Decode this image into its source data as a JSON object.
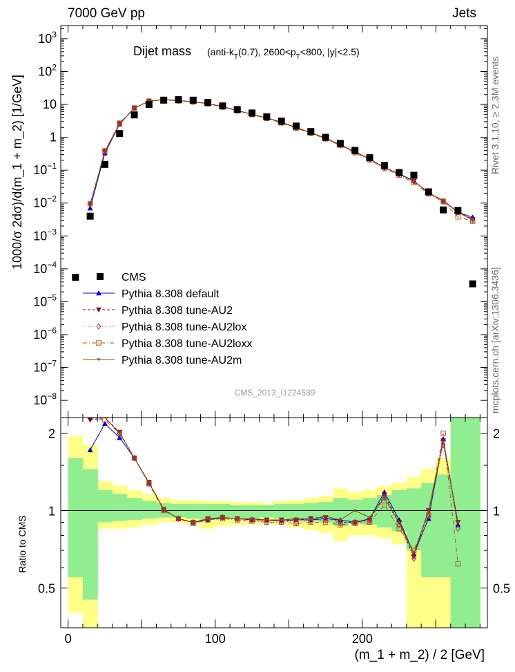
{
  "header": {
    "left": "7000 GeV pp",
    "right": "Jets"
  },
  "side_labels": {
    "rivet": "Rivet 3.1.10, ≥ 2.3M events",
    "mcplots": "mcplots.cern.ch [arXiv:1306.3436]"
  },
  "chart_data": [
    {
      "type": "scatter",
      "panel": "main",
      "title_main": "Dijet mass",
      "title_cut_parts": [
        "(anti-k",
        "T",
        "(0.7), 2600<p",
        "T",
        "<800, |y|<2.5)"
      ],
      "ylabel": "1000/σ 2dσ)/d(m_1 + m_2) [1/GeV]",
      "watermark": "CMS_2013_I1224539",
      "y_scale": "log",
      "xlim": [
        -5,
        285
      ],
      "ylim": [
        3e-09,
        2500
      ],
      "y_ticks": [
        {
          "value": 1e-08,
          "label_base": "10",
          "label_exp": "−8"
        },
        {
          "value": 1e-07,
          "label_base": "10",
          "label_exp": "−7"
        },
        {
          "value": 1e-06,
          "label_base": "10",
          "label_exp": "−6"
        },
        {
          "value": 1e-05,
          "label_base": "10",
          "label_exp": "−5"
        },
        {
          "value": 0.0001,
          "label_base": "10",
          "label_exp": "−4"
        },
        {
          "value": 0.001,
          "label_base": "10",
          "label_exp": "−3"
        },
        {
          "value": 0.01,
          "label_base": "10",
          "label_exp": "−2"
        },
        {
          "value": 0.1,
          "label_base": "10",
          "label_exp": "−1"
        },
        {
          "value": 1,
          "label_base": "1",
          "label_exp": ""
        },
        {
          "value": 10,
          "label_base": "10",
          "label_exp": ""
        },
        {
          "value": 100,
          "label_base": "10",
          "label_exp": "2"
        },
        {
          "value": 1000,
          "label_base": "10",
          "label_exp": "3"
        }
      ],
      "legend_position": "middle-left",
      "series": [
        {
          "name": "CMS",
          "color": "#000000",
          "marker": "square-filled",
          "x": [
            5,
            15,
            25,
            35,
            45,
            55,
            65,
            75,
            85,
            95,
            105,
            115,
            125,
            135,
            145,
            155,
            165,
            175,
            185,
            195,
            205,
            215,
            225,
            235,
            245,
            255,
            265,
            275
          ],
          "y": [
            5.5e-05,
            0.004,
            0.15,
            1.3,
            4.8,
            10.0,
            13.5,
            14.0,
            13.5,
            11.5,
            9.0,
            7.0,
            5.5,
            4.2,
            3.1,
            2.2,
            1.5,
            1.0,
            0.65,
            0.4,
            0.24,
            0.14,
            0.085,
            0.07,
            0.022,
            0.0062,
            0.006,
            3.5e-05
          ]
        },
        {
          "name": "Pythia 8.308 default",
          "color": "#0000cc",
          "marker": "triangle-up",
          "dash": "",
          "x": [
            15,
            25,
            35,
            45,
            55,
            65,
            75,
            85,
            95,
            105,
            115,
            125,
            135,
            145,
            155,
            165,
            175,
            185,
            195,
            205,
            215,
            225,
            235,
            245,
            255,
            265,
            275
          ],
          "y": [
            0.007,
            0.33,
            2.5,
            7.8,
            12.5,
            14.2,
            13.1,
            12.1,
            10.7,
            8.6,
            6.55,
            5.0,
            3.85,
            2.85,
            2.0,
            1.38,
            0.93,
            0.6,
            0.36,
            0.22,
            0.122,
            0.078,
            0.048,
            0.02,
            0.012,
            0.0053,
            0.0037
          ]
        },
        {
          "name": "Pythia 8.308 tune-AU2",
          "color": "#800040",
          "marker": "triangle-down",
          "dash": "4,3",
          "x": [
            15,
            25,
            35,
            45,
            55,
            65,
            75,
            85,
            95,
            105,
            115,
            125,
            135,
            145,
            155,
            165,
            175,
            185,
            195,
            205,
            215,
            225,
            235,
            245,
            255,
            265,
            275
          ],
          "y": [
            0.009,
            0.37,
            2.6,
            7.7,
            12.8,
            14.0,
            13.0,
            12.0,
            10.6,
            8.5,
            6.5,
            5.0,
            3.9,
            2.85,
            2.0,
            1.38,
            0.94,
            0.59,
            0.36,
            0.22,
            0.12,
            0.076,
            0.046,
            0.021,
            0.0115,
            0.0055,
            0.0032
          ]
        },
        {
          "name": "Pythia 8.308 tune-AU2lox",
          "color": "#a03070",
          "marker": "diamond-open",
          "dash": "1,3",
          "x": [
            15,
            25,
            35,
            45,
            55,
            65,
            75,
            85,
            95,
            105,
            115,
            125,
            135,
            145,
            155,
            165,
            175,
            185,
            195,
            205,
            215,
            225,
            235,
            245,
            255,
            265,
            275
          ],
          "y": [
            0.0095,
            0.38,
            2.6,
            7.7,
            12.7,
            14.0,
            13.0,
            12.1,
            10.6,
            8.5,
            6.5,
            5.0,
            3.8,
            2.8,
            1.95,
            1.36,
            0.92,
            0.58,
            0.355,
            0.215,
            0.118,
            0.074,
            0.045,
            0.02,
            0.0112,
            0.0052,
            0.003
          ]
        },
        {
          "name": "Pythia 8.308 tune-AU2loxx",
          "color": "#b05010",
          "marker": "square-open",
          "dash": "6,3,1,3",
          "x": [
            15,
            25,
            35,
            45,
            55,
            65,
            75,
            85,
            95,
            105,
            115,
            125,
            135,
            145,
            155,
            165,
            175,
            185,
            195,
            205,
            215,
            225,
            235,
            245,
            255,
            265,
            275
          ],
          "y": [
            0.0095,
            0.39,
            2.7,
            7.8,
            12.6,
            13.8,
            12.8,
            11.9,
            10.4,
            8.4,
            6.4,
            4.9,
            3.75,
            2.75,
            1.9,
            1.33,
            0.9,
            0.56,
            0.34,
            0.205,
            0.112,
            0.07,
            0.042,
            0.019,
            0.011,
            0.0038,
            0.0028
          ]
        },
        {
          "name": "Pythia 8.308 tune-AU2m",
          "color": "#8b4a00",
          "marker": "tri-small",
          "dash": "",
          "x": [
            15,
            25,
            35,
            45,
            55,
            65,
            75,
            85,
            95,
            105,
            115,
            125,
            135,
            145,
            155,
            165,
            175,
            185,
            195,
            205,
            215,
            225,
            235,
            245,
            255,
            265,
            275
          ],
          "y": [
            0.009,
            0.37,
            2.6,
            7.7,
            12.6,
            14.0,
            13.0,
            12.0,
            10.6,
            8.5,
            6.5,
            5.0,
            3.9,
            2.9,
            2.0,
            1.4,
            0.95,
            0.6,
            0.37,
            0.22,
            0.12,
            0.077,
            0.046,
            0.021,
            0.0115,
            0.0053,
            0.003
          ]
        }
      ]
    },
    {
      "type": "scatter",
      "panel": "ratio",
      "ylabel": "Ratio to CMS",
      "xlabel": "(m_1 + m_2) / 2 [GeV]",
      "y_scale": "log",
      "xlim": [
        -5,
        285
      ],
      "ylim": [
        0.35,
        2.3
      ],
      "y_ticks": [
        0.5,
        1,
        2
      ],
      "x_ticks": [
        0,
        100,
        200
      ],
      "bands": {
        "x_edges": [
          0,
          10,
          20,
          30,
          40,
          50,
          60,
          70,
          80,
          90,
          100,
          110,
          120,
          130,
          140,
          150,
          160,
          170,
          180,
          190,
          200,
          210,
          220,
          230,
          240,
          250,
          260,
          270,
          280
        ],
        "yellow_lo": [
          0.4,
          0.35,
          0.85,
          0.85,
          0.86,
          0.88,
          0.9,
          0.9,
          0.88,
          0.85,
          0.87,
          0.88,
          0.88,
          0.89,
          0.88,
          0.86,
          0.84,
          0.82,
          0.76,
          0.8,
          0.8,
          0.78,
          0.74,
          0.35,
          0.35,
          0.35,
          0.35,
          0.35
        ],
        "yellow_hi": [
          1.95,
          1.8,
          1.3,
          1.25,
          1.2,
          1.16,
          1.12,
          1.1,
          1.1,
          1.09,
          1.09,
          1.08,
          1.08,
          1.07,
          1.09,
          1.1,
          1.12,
          1.14,
          1.22,
          1.18,
          1.2,
          1.25,
          1.28,
          1.35,
          1.45,
          1.6,
          2.3,
          2.3
        ],
        "green_lo": [
          0.55,
          0.45,
          0.9,
          0.91,
          0.92,
          0.93,
          0.94,
          0.94,
          0.93,
          0.92,
          0.93,
          0.93,
          0.93,
          0.94,
          0.93,
          0.92,
          0.91,
          0.9,
          0.87,
          0.89,
          0.88,
          0.86,
          0.83,
          0.7,
          0.55,
          0.55,
          0.35,
          0.35
        ],
        "green_hi": [
          1.6,
          1.45,
          1.2,
          1.16,
          1.12,
          1.09,
          1.07,
          1.06,
          1.06,
          1.06,
          1.06,
          1.05,
          1.05,
          1.05,
          1.06,
          1.06,
          1.07,
          1.08,
          1.12,
          1.1,
          1.12,
          1.15,
          1.2,
          1.22,
          1.28,
          1.38,
          2.3,
          2.3
        ]
      },
      "series": [
        {
          "name": "Pythia 8.308 default",
          "color": "#0000cc",
          "marker": "triangle-up",
          "dash": "",
          "x": [
            15,
            25,
            35,
            45,
            55,
            65,
            75,
            85,
            95,
            105,
            115,
            125,
            135,
            145,
            155,
            165,
            175,
            185,
            195,
            205,
            215,
            225,
            235,
            245,
            255,
            265
          ],
          "y": [
            1.72,
            2.18,
            1.92,
            1.6,
            1.28,
            1.01,
            0.93,
            0.9,
            0.92,
            0.94,
            0.93,
            0.92,
            0.92,
            0.91,
            0.92,
            0.92,
            0.93,
            0.92,
            0.9,
            0.93,
            1.18,
            0.92,
            0.68,
            0.93,
            1.9,
            0.88
          ]
        },
        {
          "name": "Pythia 8.308 tune-AU2",
          "color": "#800040",
          "marker": "triangle-down",
          "dash": "4,3",
          "x": [
            15,
            25,
            35,
            45,
            55,
            65,
            75,
            85,
            95,
            105,
            115,
            125,
            135,
            145,
            155,
            165,
            175,
            185,
            195,
            205,
            215,
            225,
            235,
            245,
            255,
            265
          ],
          "y": [
            2.25,
            2.45,
            2.02,
            1.6,
            1.29,
            1.01,
            0.93,
            0.9,
            0.93,
            0.94,
            0.93,
            0.92,
            0.92,
            0.92,
            0.92,
            0.93,
            0.94,
            0.9,
            0.9,
            0.92,
            1.15,
            0.9,
            0.66,
            1.0,
            1.87,
            0.9
          ]
        },
        {
          "name": "Pythia 8.308 tune-AU2lox",
          "color": "#a03070",
          "marker": "diamond-open",
          "dash": "1,3",
          "x": [
            15,
            25,
            35,
            45,
            55,
            65,
            75,
            85,
            95,
            105,
            115,
            125,
            135,
            145,
            155,
            165,
            175,
            185,
            195,
            205,
            215,
            225,
            235,
            245,
            255,
            265
          ],
          "y": [
            2.4,
            2.5,
            2.0,
            1.6,
            1.28,
            1.01,
            0.93,
            0.9,
            0.92,
            0.94,
            0.93,
            0.92,
            0.91,
            0.91,
            0.9,
            0.91,
            0.92,
            0.89,
            0.9,
            0.91,
            1.12,
            0.88,
            0.65,
            0.95,
            1.8,
            0.85
          ]
        },
        {
          "name": "Pythia 8.308 tune-AU2loxx",
          "color": "#b05010",
          "marker": "square-open",
          "dash": "6,3,1,3",
          "x": [
            15,
            25,
            35,
            45,
            55,
            65,
            75,
            85,
            95,
            105,
            115,
            125,
            135,
            145,
            155,
            165,
            175,
            185,
            195,
            205,
            215,
            225,
            235,
            245,
            255,
            265
          ],
          "y": [
            2.35,
            2.25,
            2.0,
            1.6,
            1.27,
            1.0,
            0.93,
            0.89,
            0.92,
            0.93,
            0.92,
            0.91,
            0.9,
            0.9,
            0.89,
            0.9,
            0.9,
            0.88,
            0.89,
            0.9,
            1.05,
            0.85,
            0.7,
            0.96,
            2.0,
            0.62
          ]
        },
        {
          "name": "Pythia 8.308 tune-AU2m",
          "color": "#8b4a00",
          "marker": "tri-small",
          "dash": "",
          "x": [
            15,
            25,
            35,
            45,
            55,
            65,
            75,
            85,
            95,
            105,
            115,
            125,
            135,
            145,
            155,
            165,
            175,
            185,
            195,
            205,
            215,
            225,
            235,
            245,
            255,
            265
          ],
          "y": [
            2.3,
            2.45,
            2.0,
            1.6,
            1.28,
            1.01,
            0.93,
            0.9,
            0.93,
            0.94,
            0.93,
            0.93,
            0.92,
            0.92,
            0.93,
            0.93,
            0.95,
            0.92,
            1.0,
            0.94,
            1.12,
            0.9,
            0.68,
            1.0,
            1.85,
            0.9
          ]
        }
      ]
    }
  ]
}
